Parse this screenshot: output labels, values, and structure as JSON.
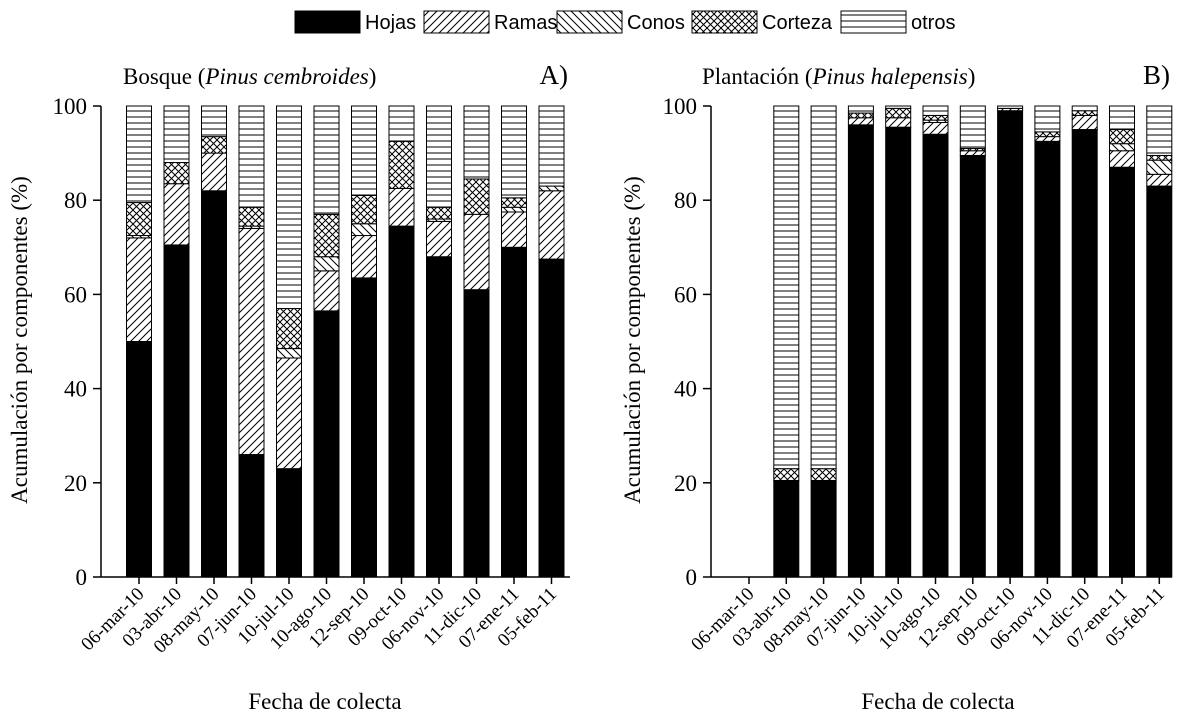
{
  "legend": {
    "items": [
      {
        "label": "Hojas",
        "pattern": "solid"
      },
      {
        "label": "Ramas",
        "pattern": "diag-up"
      },
      {
        "label": "Conos",
        "pattern": "diag-down"
      },
      {
        "label": "Corteza",
        "pattern": "crosshatch"
      },
      {
        "label": "otros",
        "pattern": "horizontal"
      }
    ],
    "placement": "top-center"
  },
  "colors": {
    "ink": "#000000",
    "paper": "#ffffff"
  },
  "chart_data": [
    {
      "type": "bar",
      "stacked": true,
      "title_prefix": "Bosque (",
      "title_italic": "Pinus cembroides",
      "title_suffix": ")",
      "panel_label": "A)",
      "xlabel": "Fecha de colecta",
      "ylabel": "Acumulación por componentes (%)",
      "ylim": [
        0,
        100
      ],
      "yticks": [
        "0",
        "20",
        "40",
        "60",
        "80",
        "100"
      ],
      "categories": [
        "06-mar-10",
        "03-abr-10",
        "08-may-10",
        "07-jun-10",
        "10-jul-10",
        "10-ago-10",
        "12-sep-10",
        "09-oct-10",
        "06-nov-10",
        "11-dic-10",
        "07-ene-11",
        "05-feb-11"
      ],
      "series": [
        {
          "name": "Hojas",
          "values": [
            50,
            70.5,
            82,
            26,
            23,
            56.5,
            63.5,
            74.5,
            68,
            61,
            70,
            67.5
          ]
        },
        {
          "name": "Ramas",
          "values": [
            22,
            13,
            8,
            48,
            23.5,
            8.5,
            9,
            8,
            7.5,
            16,
            7.5,
            14.5
          ]
        },
        {
          "name": "Conos",
          "values": [
            0.5,
            0,
            0,
            0.5,
            2,
            3,
            2.5,
            0,
            0.5,
            0,
            1,
            1
          ]
        },
        {
          "name": "Corteza",
          "values": [
            7,
            4.5,
            3.5,
            4,
            8.5,
            9,
            6,
            10,
            2.5,
            7.5,
            2,
            0
          ]
        },
        {
          "name": "otros",
          "values": [
            20.5,
            12,
            6.5,
            21.5,
            43,
            23,
            19,
            7.5,
            21.5,
            15.5,
            19.5,
            17
          ]
        }
      ]
    },
    {
      "type": "bar",
      "stacked": true,
      "title_prefix": "Plantación (",
      "title_italic": "Pinus halepensis",
      "title_suffix": ")",
      "panel_label": "B)",
      "xlabel": "Fecha de colecta",
      "ylabel": "Acumulación por componentes (%)",
      "ylim": [
        0,
        100
      ],
      "yticks": [
        "0",
        "20",
        "40",
        "60",
        "80",
        "100"
      ],
      "categories": [
        "06-mar-10",
        "03-abr-10",
        "08-may-10",
        "07-jun-10",
        "10-jul-10",
        "10-ago-10",
        "12-sep-10",
        "09-oct-10",
        "06-nov-10",
        "11-dic-10",
        "07-ene-11",
        "05-feb-11"
      ],
      "series": [
        {
          "name": "Hojas",
          "values": [
            0,
            20.5,
            20.5,
            96,
            95.5,
            94,
            89.5,
            99,
            92.5,
            95,
            87,
            83
          ]
        },
        {
          "name": "Ramas",
          "values": [
            0,
            0,
            0,
            1.5,
            2,
            2.5,
            1,
            0.5,
            1,
            3,
            3.5,
            2.5
          ]
        },
        {
          "name": "Conos",
          "values": [
            0,
            0,
            0,
            0,
            0,
            0.5,
            0,
            0,
            0,
            0,
            1.5,
            3
          ]
        },
        {
          "name": "Corteza",
          "values": [
            0,
            2.5,
            2.5,
            1,
            2,
            1,
            0.5,
            0,
            1,
            1,
            3,
            1
          ]
        },
        {
          "name": "otros",
          "values": [
            0,
            77,
            77,
            1.5,
            0.5,
            2,
            9,
            0.5,
            5.5,
            1,
            5,
            10.5
          ]
        }
      ]
    }
  ]
}
